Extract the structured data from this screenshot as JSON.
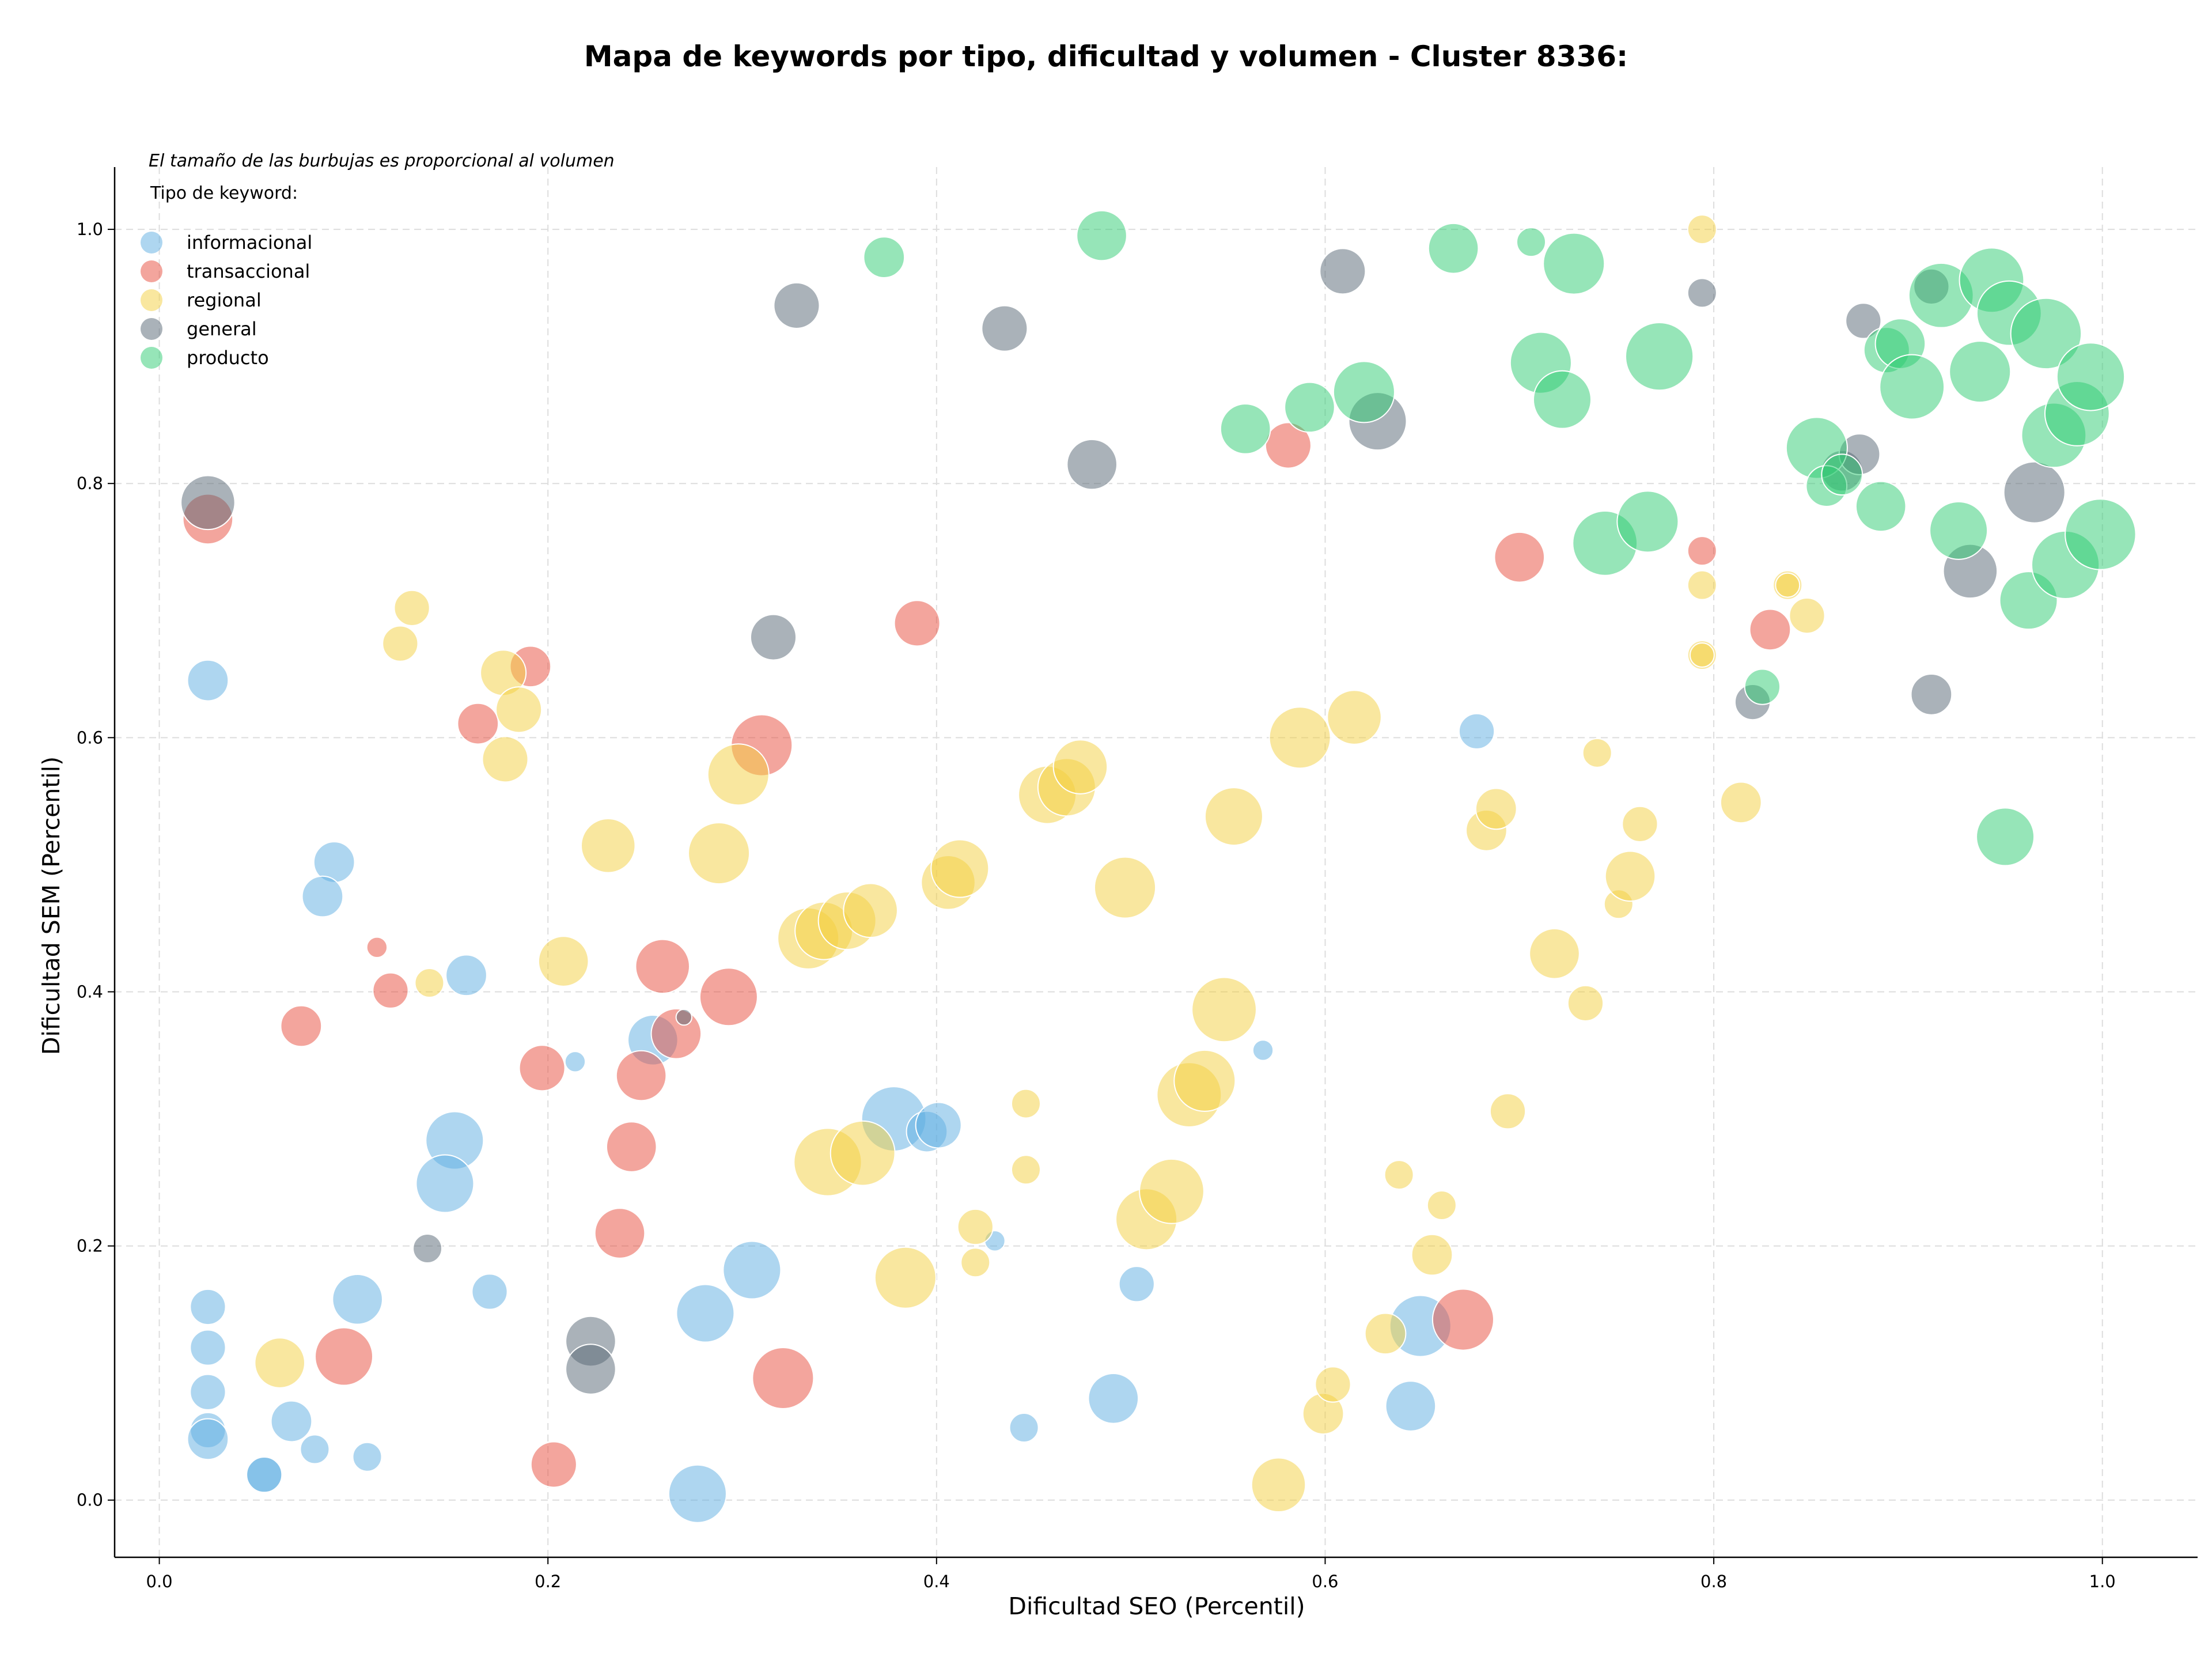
{
  "chart_data": {
    "type": "scatter",
    "title": "Mapa de keywords por tipo, dificultad y volumen - Cluster 8336:",
    "xlabel": "Dificultad SEO (Percentil)",
    "ylabel": "Dificultad SEM (Percentil)",
    "xlim": [
      -0.023,
      1.049
    ],
    "ylim": [
      -0.045,
      1.049
    ],
    "xticks": [
      "0.0",
      "0.2",
      "0.4",
      "0.6",
      "0.8",
      "1.0"
    ],
    "yticks": [
      "0.0",
      "0.2",
      "0.4",
      "0.6",
      "0.8",
      "1.0"
    ],
    "grid": true,
    "note": "El tamaño de las burbujas es proporcional al volumen",
    "legend_title": "Tipo de keyword:",
    "legend_position": "top-left",
    "size_encoding": "volume",
    "series": [
      {
        "name": "informacional",
        "color": "#5dade2",
        "points": [
          [
            0.025,
            0.645,
            2
          ],
          [
            0.09,
            0.502,
            2
          ],
          [
            0.084,
            0.475,
            2
          ],
          [
            0.158,
            0.413,
            2
          ],
          [
            0.025,
            0.152,
            1.5
          ],
          [
            0.025,
            0.12,
            1.5
          ],
          [
            0.025,
            0.085,
            1.5
          ],
          [
            0.025,
            0.055,
            1.5
          ],
          [
            0.025,
            0.048,
            2
          ],
          [
            0.054,
            0.02,
            1.5
          ],
          [
            0.054,
            0.02,
            1.5
          ],
          [
            0.068,
            0.062,
            2
          ],
          [
            0.08,
            0.04,
            1
          ],
          [
            0.107,
            0.034,
            1
          ],
          [
            0.102,
            0.158,
            3
          ],
          [
            0.152,
            0.283,
            4
          ],
          [
            0.147,
            0.249,
            4
          ],
          [
            0.17,
            0.164,
            1.5
          ],
          [
            0.214,
            0.345,
            0.5
          ],
          [
            0.254,
            0.362,
            3
          ],
          [
            0.281,
            0.147,
            4
          ],
          [
            0.305,
            0.181,
            4
          ],
          [
            0.277,
            0.005,
            4
          ],
          [
            0.378,
            0.3,
            5
          ],
          [
            0.395,
            0.29,
            2
          ],
          [
            0.401,
            0.295,
            2.5
          ],
          [
            0.43,
            0.204,
            0.5
          ],
          [
            0.445,
            0.057,
            1
          ],
          [
            0.491,
            0.08,
            3
          ],
          [
            0.503,
            0.17,
            1.5
          ],
          [
            0.568,
            0.354,
            0.5
          ],
          [
            0.678,
            0.605,
            1.5
          ],
          [
            0.644,
            0.074,
            3
          ],
          [
            0.649,
            0.137,
            4.5
          ]
        ]
      },
      {
        "name": "transaccional",
        "color": "#e74c3c",
        "points": [
          [
            0.025,
            0.772,
            3
          ],
          [
            0.112,
            0.435,
            0.5
          ],
          [
            0.119,
            0.401,
            1.5
          ],
          [
            0.073,
            0.373,
            2
          ],
          [
            0.164,
            0.611,
            2
          ],
          [
            0.191,
            0.656,
            2
          ],
          [
            0.197,
            0.34,
            2.5
          ],
          [
            0.095,
            0.113,
            4
          ],
          [
            0.203,
            0.028,
            2.5
          ],
          [
            0.237,
            0.21,
            3
          ],
          [
            0.243,
            0.278,
            3
          ],
          [
            0.248,
            0.334,
            3
          ],
          [
            0.259,
            0.42,
            3.5
          ],
          [
            0.266,
            0.367,
            3
          ],
          [
            0.293,
            0.396,
            4
          ],
          [
            0.31,
            0.594,
            4.5
          ],
          [
            0.321,
            0.096,
            4.5
          ],
          [
            0.39,
            0.69,
            2.5
          ],
          [
            0.581,
            0.83,
            2.5
          ],
          [
            0.671,
            0.142,
            4.5
          ],
          [
            0.7,
            0.742,
            3
          ],
          [
            0.794,
            0.747,
            1
          ],
          [
            0.829,
            0.685,
            2
          ]
        ]
      },
      {
        "name": "regional",
        "color": "#f4d03f",
        "points": [
          [
            0.13,
            0.702,
            1.5
          ],
          [
            0.124,
            0.674,
            1.5
          ],
          [
            0.139,
            0.407,
            1
          ],
          [
            0.062,
            0.108,
            3
          ],
          [
            0.177,
            0.651,
            2.5
          ],
          [
            0.185,
            0.622,
            2.5
          ],
          [
            0.178,
            0.583,
            2.5
          ],
          [
            0.208,
            0.424,
            3
          ],
          [
            0.231,
            0.515,
            3.5
          ],
          [
            0.288,
            0.509,
            4.5
          ],
          [
            0.298,
            0.571,
            4.5
          ],
          [
            0.334,
            0.442,
            4.5
          ],
          [
            0.342,
            0.448,
            4
          ],
          [
            0.354,
            0.456,
            4
          ],
          [
            0.366,
            0.464,
            3.5
          ],
          [
            0.344,
            0.266,
            5.5
          ],
          [
            0.362,
            0.273,
            5
          ],
          [
            0.384,
            0.175,
            4.5
          ],
          [
            0.406,
            0.486,
            3.5
          ],
          [
            0.412,
            0.497,
            4
          ],
          [
            0.42,
            0.215,
            1.5
          ],
          [
            0.42,
            0.187,
            1
          ],
          [
            0.446,
            0.312,
            1
          ],
          [
            0.446,
            0.26,
            1
          ],
          [
            0.457,
            0.555,
            4
          ],
          [
            0.467,
            0.561,
            4
          ],
          [
            0.474,
            0.577,
            3.5
          ],
          [
            0.497,
            0.482,
            4.5
          ],
          [
            0.508,
            0.221,
            4.5
          ],
          [
            0.521,
            0.243,
            5
          ],
          [
            0.53,
            0.319,
            5
          ],
          [
            0.538,
            0.33,
            4.5
          ],
          [
            0.548,
            0.386,
            5
          ],
          [
            0.553,
            0.538,
            4
          ],
          [
            0.576,
            0.012,
            3.5
          ],
          [
            0.587,
            0.6,
            4.5
          ],
          [
            0.615,
            0.616,
            3.5
          ],
          [
            0.599,
            0.068,
            2
          ],
          [
            0.604,
            0.091,
            1.5
          ],
          [
            0.631,
            0.131,
            2
          ],
          [
            0.638,
            0.256,
            1
          ],
          [
            0.655,
            0.193,
            2
          ],
          [
            0.66,
            0.232,
            1
          ],
          [
            0.683,
            0.527,
            2
          ],
          [
            0.688,
            0.544,
            2
          ],
          [
            0.694,
            0.306,
            1.5
          ],
          [
            0.718,
            0.43,
            3
          ],
          [
            0.734,
            0.391,
            1.5
          ],
          [
            0.74,
            0.588,
            1
          ],
          [
            0.751,
            0.469,
            1
          ],
          [
            0.757,
            0.491,
            3
          ],
          [
            0.762,
            0.532,
            1.5
          ],
          [
            0.794,
            1.0,
            1
          ],
          [
            0.794,
            0.72,
            1
          ],
          [
            0.794,
            0.665,
            1
          ],
          [
            0.794,
            0.665,
            0.7
          ],
          [
            0.814,
            0.549,
            2
          ],
          [
            0.838,
            0.72,
            1
          ],
          [
            0.838,
            0.72,
            0.7
          ],
          [
            0.848,
            0.696,
            1.5
          ]
        ]
      },
      {
        "name": "general",
        "color": "#566573",
        "points": [
          [
            0.025,
            0.785,
            3.5
          ],
          [
            0.138,
            0.198,
            1
          ],
          [
            0.222,
            0.125,
            3
          ],
          [
            0.222,
            0.103,
            3
          ],
          [
            0.27,
            0.38,
            0.3
          ],
          [
            0.316,
            0.679,
            2.5
          ],
          [
            0.328,
            0.94,
            2.5
          ],
          [
            0.435,
            0.922,
            2.5
          ],
          [
            0.48,
            0.815,
            3
          ],
          [
            0.609,
            0.967,
            2.5
          ],
          [
            0.627,
            0.849,
            4
          ],
          [
            0.794,
            0.95,
            1
          ],
          [
            0.82,
            0.628,
            1.5
          ],
          [
            0.866,
            0.81,
            2
          ],
          [
            0.875,
            0.823,
            2
          ],
          [
            0.877,
            0.928,
            1.5
          ],
          [
            0.912,
            0.634,
            2
          ],
          [
            0.912,
            0.955,
            1.5
          ],
          [
            0.932,
            0.731,
            3.5
          ],
          [
            0.965,
            0.793,
            4.5
          ]
        ]
      },
      {
        "name": "producto",
        "color": "#2ecc71",
        "points": [
          [
            0.373,
            0.978,
            2
          ],
          [
            0.485,
            0.995,
            3
          ],
          [
            0.559,
            0.843,
            3
          ],
          [
            0.592,
            0.86,
            3
          ],
          [
            0.62,
            0.872,
            4.5
          ],
          [
            0.666,
            0.985,
            3
          ],
          [
            0.706,
            0.99,
            1
          ],
          [
            0.711,
            0.895,
            4.5
          ],
          [
            0.722,
            0.866,
            4
          ],
          [
            0.728,
            0.973,
            4.5
          ],
          [
            0.744,
            0.753,
            5
          ],
          [
            0.766,
            0.77,
            4.5
          ],
          [
            0.772,
            0.9,
            5.5
          ],
          [
            0.825,
            0.64,
            1.5
          ],
          [
            0.853,
            0.828,
            4.5
          ],
          [
            0.858,
            0.798,
            2
          ],
          [
            0.866,
            0.807,
            2
          ],
          [
            0.886,
            0.782,
            3
          ],
          [
            0.889,
            0.905,
            2.5
          ],
          [
            0.896,
            0.91,
            3
          ],
          [
            0.902,
            0.876,
            5
          ],
          [
            0.917,
            0.948,
            5
          ],
          [
            0.926,
            0.763,
            4
          ],
          [
            0.937,
            0.888,
            4.5
          ],
          [
            0.943,
            0.96,
            5
          ],
          [
            0.952,
            0.934,
            5
          ],
          [
            0.962,
            0.708,
            4
          ],
          [
            0.971,
            0.918,
            6
          ],
          [
            0.975,
            0.838,
            5
          ],
          [
            0.981,
            0.736,
            5.5
          ],
          [
            0.987,
            0.855,
            5
          ],
          [
            0.994,
            0.884,
            5.5
          ],
          [
            0.999,
            0.76,
            6
          ],
          [
            0.95,
            0.522,
            4
          ]
        ]
      }
    ]
  }
}
